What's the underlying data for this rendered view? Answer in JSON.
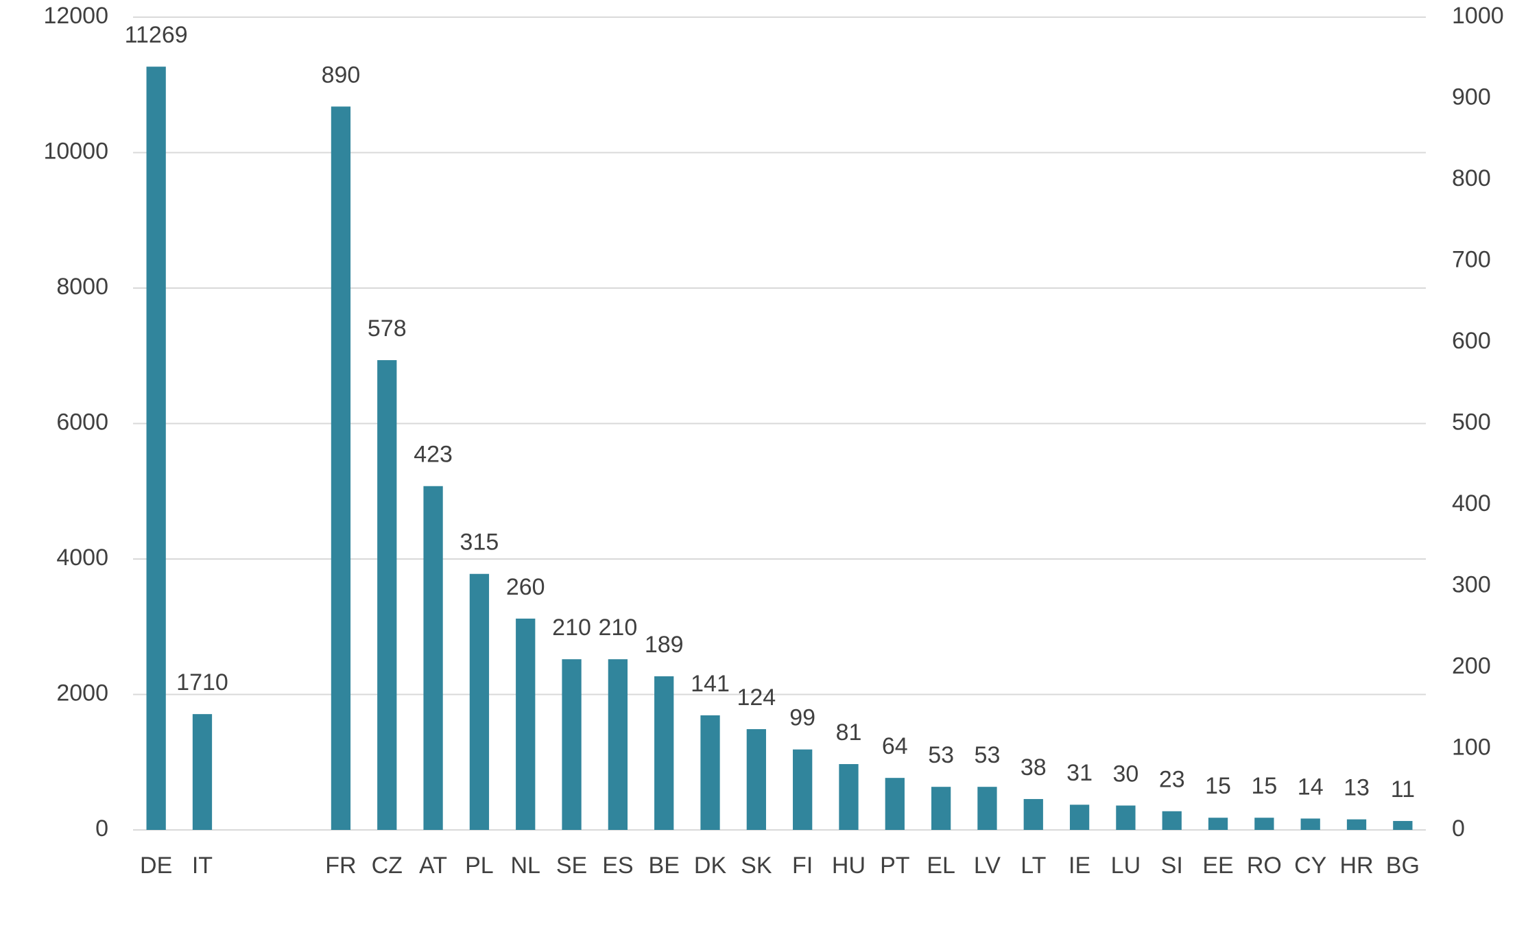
{
  "chart_data": {
    "type": "bar",
    "categories": [
      "DE",
      "IT",
      null,
      null,
      "FR",
      "CZ",
      "AT",
      "PL",
      "NL",
      "SE",
      "ES",
      "BE",
      "DK",
      "SK",
      "FI",
      "HU",
      "PT",
      "EL",
      "LV",
      "LT",
      "IE",
      "LU",
      "SI",
      "EE",
      "RO",
      "CY",
      "HR",
      "BG"
    ],
    "series": [
      {
        "color": "#31859c",
        "axis": "y",
        "values": [
          11269,
          1710,
          null,
          null,
          null,
          null,
          null,
          null,
          null,
          null,
          null,
          null,
          null,
          null,
          null,
          null,
          null,
          null,
          null,
          null,
          null,
          null,
          null,
          null,
          null,
          null,
          null,
          null
        ]
      },
      {
        "color": "#31859c",
        "axis": "y2",
        "values": [
          null,
          null,
          null,
          null,
          890,
          578,
          423,
          315,
          260,
          210,
          210,
          189,
          141,
          124,
          99,
          81,
          64,
          53,
          53,
          38,
          31,
          30,
          23,
          15,
          15,
          14,
          13,
          11
        ]
      }
    ],
    "ylim": [
      0,
      12000
    ],
    "yticks": [
      0,
      2000,
      4000,
      6000,
      8000,
      10000,
      12000
    ],
    "y2lim": [
      0,
      1000
    ],
    "y2ticks": [
      0,
      100,
      200,
      300,
      400,
      500,
      600,
      700,
      800,
      900,
      1000
    ],
    "grid": true
  }
}
